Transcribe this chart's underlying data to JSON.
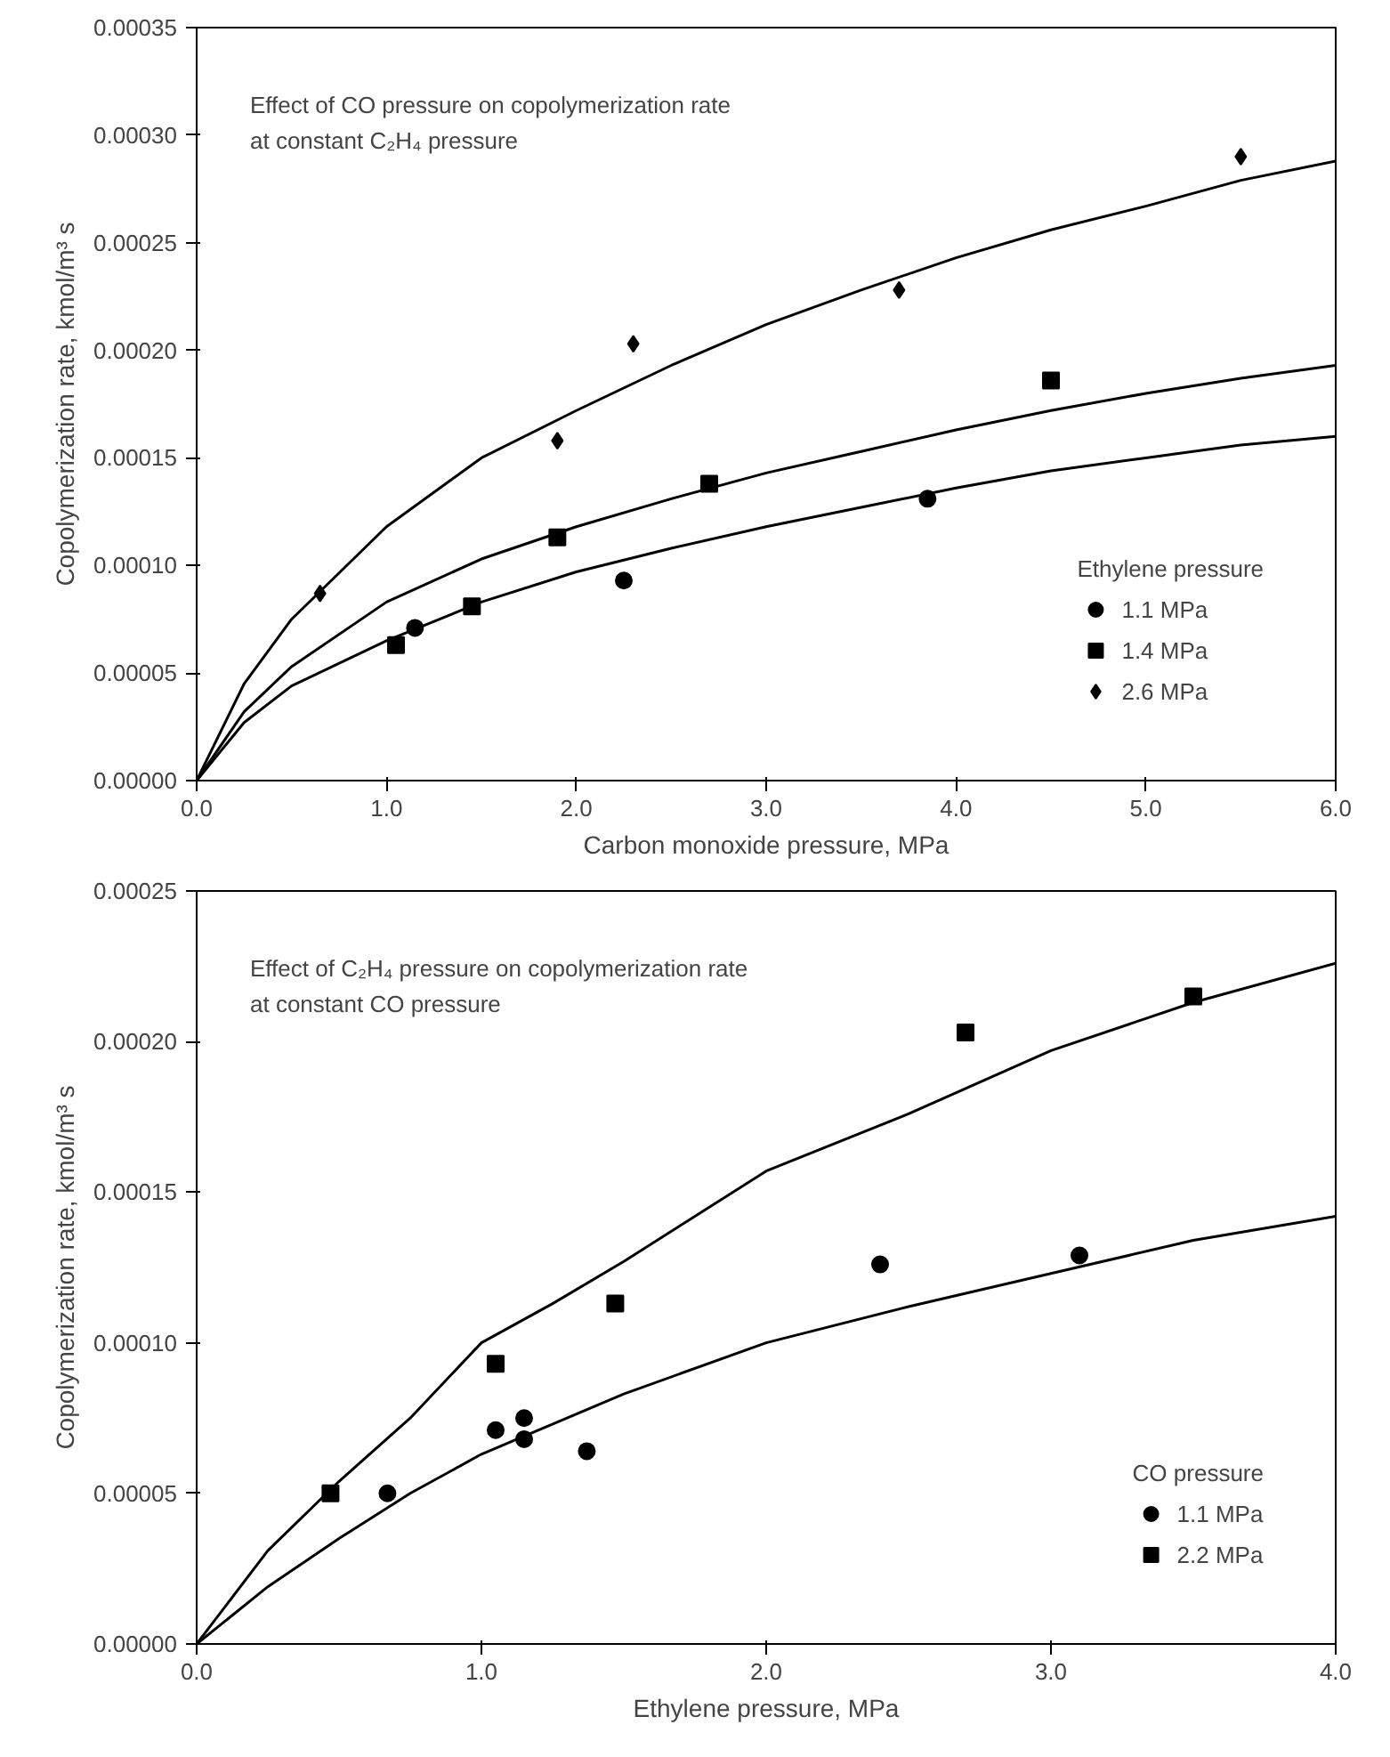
{
  "chart_data": [
    {
      "type": "scatter",
      "xlabel": "Carbon monoxide pressure, MPa",
      "ylabel": "Copolymerization rate, kmol/m³ s",
      "legend_title": "Ethylene pressure",
      "annotations": [
        "Effect of CO pressure on copolymerization rate",
        "at constant C₂H₄ pressure"
      ],
      "xlim": [
        0,
        6
      ],
      "ylim": [
        0,
        0.00035
      ],
      "xticks": [
        {
          "value": 0,
          "label": "0.0"
        },
        {
          "value": 1,
          "label": "1.0"
        },
        {
          "value": 2,
          "label": "2.0"
        },
        {
          "value": 3,
          "label": "3.0"
        },
        {
          "value": 4,
          "label": "4.0"
        },
        {
          "value": 5,
          "label": "5.0"
        },
        {
          "value": 6,
          "label": "6.0"
        }
      ],
      "yticks": [
        {
          "value": 0,
          "label": "0.00000"
        },
        {
          "value": 5e-05,
          "label": "0.00005"
        },
        {
          "value": 0.0001,
          "label": "0.00010"
        },
        {
          "value": 0.00015,
          "label": "0.00015"
        },
        {
          "value": 0.0002,
          "label": "0.00020"
        },
        {
          "value": 0.00025,
          "label": "0.00025"
        },
        {
          "value": 0.0003,
          "label": "0.00030"
        },
        {
          "value": 0.00035,
          "label": "0.00035"
        }
      ],
      "grid": false,
      "legend": "bottom right",
      "series": [
        {
          "name": "1.1 MPa",
          "marker": "circle",
          "color": "#000000",
          "x": [
            1.15,
            2.25,
            3.85
          ],
          "values": [
            7.1e-05,
            9.3e-05,
            0.000131
          ]
        },
        {
          "name": "1.4 MPa",
          "marker": "square",
          "color": "#000000",
          "x": [
            1.05,
            1.45,
            1.9,
            2.7,
            4.5
          ],
          "values": [
            6.3e-05,
            8.1e-05,
            0.000113,
            0.000138,
            0.000186
          ]
        },
        {
          "name": "2.6 MPa",
          "marker": "diamond",
          "color": "#000000",
          "x": [
            0.65,
            1.9,
            2.3,
            3.7,
            5.5
          ],
          "values": [
            8.7e-05,
            0.000158,
            0.000203,
            0.000228,
            0.00029
          ]
        },
        {
          "type": "line",
          "color": "#000000",
          "x": [
            0,
            0.25,
            0.5,
            1.0,
            1.5,
            2.0,
            2.5,
            3.0,
            3.5,
            4.0,
            4.5,
            5.0,
            5.5,
            6.0
          ],
          "values": [
            0,
            2.7e-05,
            4.4e-05,
            6.5e-05,
            8.3e-05,
            9.7e-05,
            0.000108,
            0.000118,
            0.000127,
            0.000136,
            0.000144,
            0.00015,
            0.000156,
            0.00016
          ]
        },
        {
          "type": "line",
          "color": "#000000",
          "x": [
            0,
            0.25,
            0.5,
            1.0,
            1.5,
            2.0,
            2.5,
            3.0,
            3.5,
            4.0,
            4.5,
            5.0,
            5.5,
            6.0
          ],
          "values": [
            0,
            3.2e-05,
            5.3e-05,
            8.3e-05,
            0.000103,
            0.000118,
            0.000131,
            0.000143,
            0.000153,
            0.000163,
            0.000172,
            0.00018,
            0.000187,
            0.000193
          ]
        },
        {
          "type": "line",
          "color": "#000000",
          "x": [
            0,
            0.25,
            0.5,
            1.0,
            1.5,
            2.0,
            2.5,
            3.0,
            3.5,
            4.0,
            4.5,
            5.0,
            5.5,
            6.0
          ],
          "values": [
            0,
            4.5e-05,
            7.5e-05,
            0.000118,
            0.00015,
            0.000172,
            0.000193,
            0.000212,
            0.000228,
            0.000243,
            0.000256,
            0.000267,
            0.000279,
            0.000288
          ]
        }
      ]
    },
    {
      "type": "scatter",
      "xlabel": "Ethylene pressure, MPa",
      "ylabel": "Copolymerization rate, kmol/m³ s",
      "legend_title": "CO pressure",
      "annotations": [
        "Effect of C₂H₄ pressure on copolymerization rate",
        "at constant CO pressure"
      ],
      "xlim": [
        0,
        4
      ],
      "ylim": [
        0,
        0.00025
      ],
      "xticks": [
        {
          "value": 0,
          "label": "0.0"
        },
        {
          "value": 1,
          "label": "1.0"
        },
        {
          "value": 2,
          "label": "2.0"
        },
        {
          "value": 3,
          "label": "3.0"
        },
        {
          "value": 4,
          "label": "4.0"
        }
      ],
      "yticks": [
        {
          "value": 0,
          "label": "0.00000"
        },
        {
          "value": 5e-05,
          "label": "0.00005"
        },
        {
          "value": 0.0001,
          "label": "0.00010"
        },
        {
          "value": 0.00015,
          "label": "0.00015"
        },
        {
          "value": 0.0002,
          "label": "0.00020"
        },
        {
          "value": 0.00025,
          "label": "0.00025"
        }
      ],
      "grid": false,
      "legend": "bottom right",
      "series": [
        {
          "name": "1.1 MPa",
          "marker": "circle",
          "color": "#000000",
          "x": [
            0.67,
            1.05,
            1.15,
            1.15,
            1.37,
            2.4,
            3.1
          ],
          "values": [
            5e-05,
            7.1e-05,
            7.5e-05,
            6.8e-05,
            6.4e-05,
            0.000126,
            0.000129
          ]
        },
        {
          "name": "2.2 MPa",
          "marker": "square",
          "color": "#000000",
          "x": [
            0.47,
            1.05,
            1.47,
            2.7,
            3.5
          ],
          "values": [
            5e-05,
            9.3e-05,
            0.000113,
            0.000203,
            0.000215
          ]
        },
        {
          "type": "line",
          "color": "#000000",
          "x": [
            0,
            0.25,
            0.5,
            0.75,
            1.0,
            1.5,
            2.0,
            2.5,
            3.0,
            3.5,
            4.0
          ],
          "values": [
            0,
            1.9e-05,
            3.5e-05,
            5e-05,
            6.3e-05,
            8.3e-05,
            0.0001,
            0.000112,
            0.000123,
            0.000134,
            0.000142
          ]
        },
        {
          "type": "line",
          "color": "#000000",
          "x": [
            0,
            0.25,
            0.5,
            0.75,
            1.0,
            1.25,
            1.5,
            2.0,
            2.5,
            3.0,
            3.5,
            4.0
          ],
          "values": [
            0,
            3.1e-05,
            5.4e-05,
            7.5e-05,
            0.0001,
            0.000113,
            0.000127,
            0.000157,
            0.000176,
            0.000197,
            0.000213,
            0.000226
          ]
        }
      ]
    }
  ]
}
